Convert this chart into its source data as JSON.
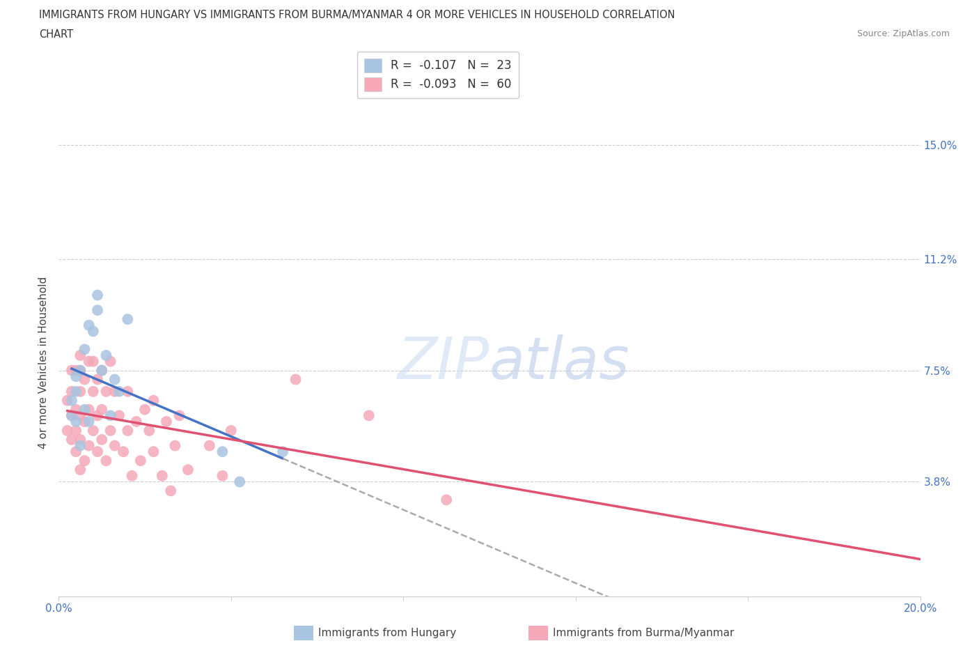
{
  "title_line1": "IMMIGRANTS FROM HUNGARY VS IMMIGRANTS FROM BURMA/MYANMAR 4 OR MORE VEHICLES IN HOUSEHOLD CORRELATION",
  "title_line2": "CHART",
  "source_text": "Source: ZipAtlas.com",
  "ylabel": "4 or more Vehicles in Household",
  "xlim": [
    0.0,
    0.2
  ],
  "ylim": [
    0.0,
    0.155
  ],
  "xtick_positions": [
    0.0,
    0.04,
    0.08,
    0.12,
    0.16,
    0.2
  ],
  "ytick_values": [
    0.038,
    0.075,
    0.112,
    0.15
  ],
  "ytick_labels": [
    "3.8%",
    "7.5%",
    "11.2%",
    "15.0%"
  ],
  "hungary_R": -0.107,
  "hungary_N": 23,
  "burma_R": -0.093,
  "burma_N": 60,
  "hungary_color": "#a8c4e0",
  "burma_color": "#f4a8b8",
  "hungary_line_color": "#4472c4",
  "burma_line_color": "#e05070",
  "trend_dashed_color": "#aaaaaa",
  "hungary_x": [
    0.003,
    0.003,
    0.004,
    0.004,
    0.004,
    0.005,
    0.005,
    0.006,
    0.006,
    0.007,
    0.007,
    0.008,
    0.009,
    0.009,
    0.01,
    0.011,
    0.012,
    0.013,
    0.014,
    0.016,
    0.038,
    0.042,
    0.052
  ],
  "hungary_y": [
    0.06,
    0.065,
    0.058,
    0.068,
    0.073,
    0.05,
    0.075,
    0.062,
    0.082,
    0.058,
    0.09,
    0.088,
    0.095,
    0.1,
    0.075,
    0.08,
    0.06,
    0.072,
    0.068,
    0.092,
    0.048,
    0.038,
    0.048
  ],
  "burma_x": [
    0.002,
    0.002,
    0.003,
    0.003,
    0.003,
    0.003,
    0.004,
    0.004,
    0.004,
    0.004,
    0.005,
    0.005,
    0.005,
    0.005,
    0.005,
    0.005,
    0.006,
    0.006,
    0.006,
    0.007,
    0.007,
    0.007,
    0.008,
    0.008,
    0.008,
    0.009,
    0.009,
    0.009,
    0.01,
    0.01,
    0.01,
    0.011,
    0.011,
    0.012,
    0.012,
    0.013,
    0.013,
    0.014,
    0.015,
    0.016,
    0.016,
    0.017,
    0.018,
    0.019,
    0.02,
    0.021,
    0.022,
    0.022,
    0.024,
    0.025,
    0.026,
    0.027,
    0.028,
    0.03,
    0.035,
    0.038,
    0.04,
    0.055,
    0.072,
    0.09
  ],
  "burma_y": [
    0.055,
    0.065,
    0.052,
    0.06,
    0.068,
    0.075,
    0.048,
    0.055,
    0.062,
    0.075,
    0.042,
    0.052,
    0.06,
    0.068,
    0.075,
    0.08,
    0.045,
    0.058,
    0.072,
    0.05,
    0.062,
    0.078,
    0.055,
    0.068,
    0.078,
    0.048,
    0.06,
    0.072,
    0.052,
    0.062,
    0.075,
    0.045,
    0.068,
    0.055,
    0.078,
    0.05,
    0.068,
    0.06,
    0.048,
    0.055,
    0.068,
    0.04,
    0.058,
    0.045,
    0.062,
    0.055,
    0.048,
    0.065,
    0.04,
    0.058,
    0.035,
    0.05,
    0.06,
    0.042,
    0.05,
    0.04,
    0.055,
    0.072,
    0.06,
    0.032
  ]
}
